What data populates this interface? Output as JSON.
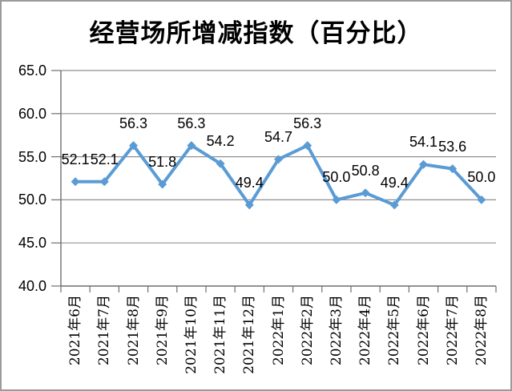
{
  "chart_data": {
    "type": "line",
    "title": "经营场所增减指数（百分比）",
    "categories": [
      "2021年6月",
      "2021年7月",
      "2021年8月",
      "2021年9月",
      "2021年10月",
      "2021年11月",
      "2021年12月",
      "2022年1月",
      "2022年2月",
      "2022年3月",
      "2022年4月",
      "2022年5月",
      "2022年6月",
      "2022年7月",
      "2022年8月"
    ],
    "values": [
      52.1,
      52.1,
      56.3,
      51.8,
      56.3,
      54.2,
      49.4,
      54.7,
      56.3,
      50.0,
      50.8,
      49.4,
      54.1,
      53.6,
      50.0
    ],
    "data_labels_visible": true,
    "ylim": [
      40.0,
      65.0
    ],
    "y_tick_step": 5.0,
    "y_tick_labels": [
      "65.0",
      "60.0",
      "55.0",
      "50.0",
      "45.0",
      "40.0"
    ],
    "x_labels_rotation_deg": -90,
    "grid": true,
    "legend": "none",
    "marker": "diamond",
    "line_color": "#5B9BD5",
    "grid_color": "#8F8F8F",
    "axis_color": "#6E6E6E",
    "text_color": "#000000",
    "background_color": "#FFFFFF",
    "border_color": "#9B9B9B"
  }
}
